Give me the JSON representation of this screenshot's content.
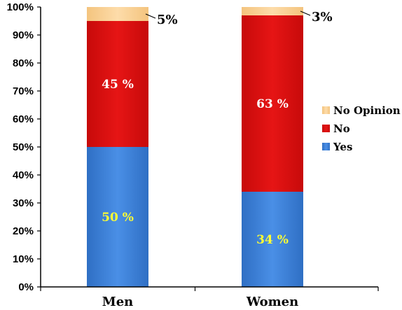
{
  "chart_data": {
    "type": "bar",
    "stacked": true,
    "categories": [
      "Men",
      "Women"
    ],
    "series": [
      {
        "name": "Yes",
        "values": [
          50,
          34
        ],
        "labels": [
          "50 %",
          "34 %"
        ],
        "color": "#3f82d9",
        "label_color": "#ffff33"
      },
      {
        "name": "No",
        "values": [
          45,
          63
        ],
        "labels": [
          "45 %",
          "63 %"
        ],
        "color": "#dd1010",
        "label_color": "#ffffff"
      },
      {
        "name": "No Opinion",
        "values": [
          5,
          3
        ],
        "labels": [
          "5%",
          "3%"
        ],
        "color": "#fbd39a",
        "label_color": "#000000"
      }
    ],
    "ylim": [
      0,
      100
    ],
    "y_ticks": [
      0,
      10,
      20,
      30,
      40,
      50,
      60,
      70,
      80,
      90,
      100
    ],
    "y_tick_labels": [
      "0%",
      "10%",
      "20%",
      "30%",
      "40%",
      "50%",
      "60%",
      "70%",
      "80%",
      "90%",
      "100%"
    ],
    "legend_order": [
      "No Opinion",
      "No",
      "Yes"
    ],
    "legend_position": "right",
    "grid": false,
    "title": "",
    "xlabel": "",
    "ylabel": ""
  }
}
